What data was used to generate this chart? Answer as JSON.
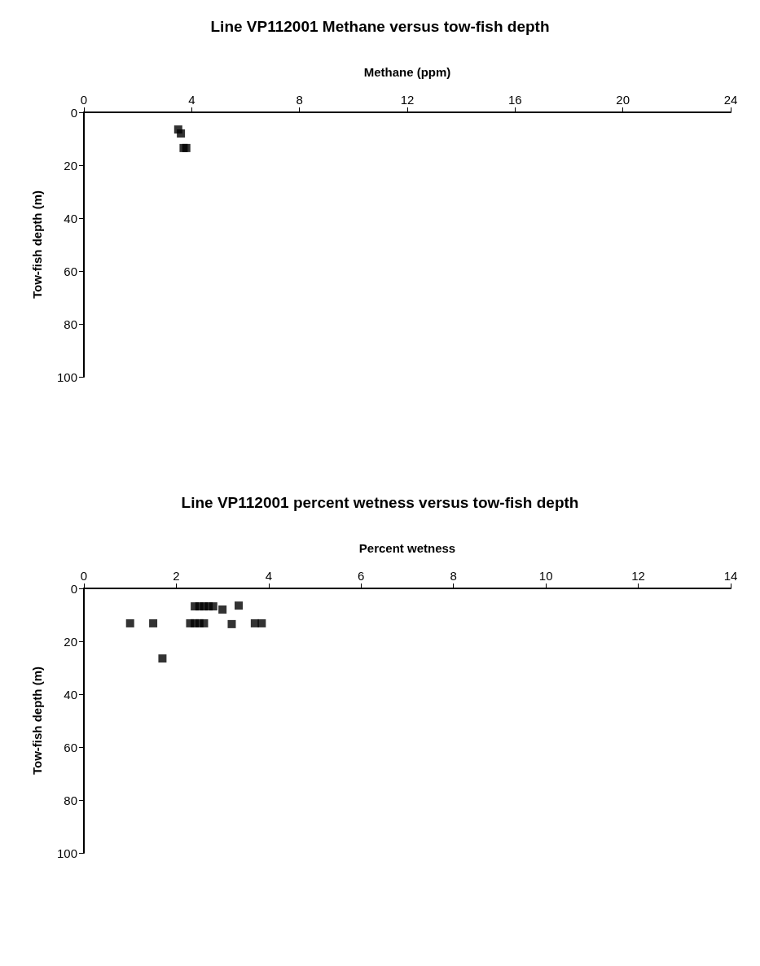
{
  "chart_data": [
    {
      "type": "scatter",
      "title": "Line VP112001 Methane versus tow-fish depth",
      "xlabel": "Methane (ppm)",
      "ylabel": "Tow-fish depth (m)",
      "xlim": [
        0,
        24
      ],
      "xticks": [
        0,
        4,
        8,
        12,
        16,
        20,
        24
      ],
      "ylim": [
        100,
        0
      ],
      "yticks": [
        0,
        20,
        40,
        60,
        80,
        100
      ],
      "grid": false,
      "marker": "square",
      "series": [
        {
          "color": "#000000",
          "x": [
            3.5,
            3.6,
            3.7,
            3.8
          ],
          "values": [
            6.5,
            8,
            13.5,
            13.5
          ]
        }
      ]
    },
    {
      "type": "scatter",
      "title": "Line VP112001 percent wetness versus tow-fish depth",
      "xlabel": "Percent wetness",
      "ylabel": "Tow-fish depth (m)",
      "xlim": [
        0,
        14
      ],
      "xticks": [
        0,
        2,
        4,
        6,
        8,
        10,
        12,
        14
      ],
      "ylim": [
        100,
        0
      ],
      "yticks": [
        0,
        20,
        40,
        60,
        80,
        100
      ],
      "grid": false,
      "marker": "square",
      "series": [
        {
          "color": "#000000",
          "x": [
            2.4,
            2.5,
            2.6,
            2.7,
            2.8,
            3,
            3.35,
            1,
            1.5,
            2.3,
            2.4,
            2.5,
            2.6,
            3.2,
            3.7,
            3.85,
            1.7
          ],
          "values": [
            6.8,
            6.8,
            6.8,
            6.8,
            6.8,
            8,
            6.5,
            13.2,
            13.2,
            13.2,
            13.2,
            13.2,
            13.2,
            13.5,
            13.2,
            13.2,
            26.5
          ]
        }
      ]
    }
  ]
}
